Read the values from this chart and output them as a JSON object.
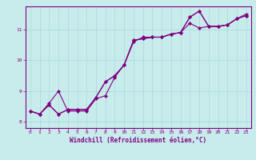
{
  "xlabel": "Windchill (Refroidissement éolien,°C)",
  "bg_color": "#c8ecec",
  "line_color": "#800080",
  "grid_color": "#a8d8d8",
  "axis_color": "#800080",
  "tick_color": "#800080",
  "xlim": [
    -0.5,
    23.5
  ],
  "ylim": [
    7.8,
    11.75
  ],
  "yticks": [
    8,
    9,
    10,
    11
  ],
  "xticks": [
    0,
    1,
    2,
    3,
    4,
    5,
    6,
    7,
    8,
    9,
    10,
    11,
    12,
    13,
    14,
    15,
    16,
    17,
    18,
    19,
    20,
    21,
    22,
    23
  ],
  "series": [
    [
      8.35,
      8.25,
      8.55,
      8.25,
      8.4,
      8.4,
      8.4,
      8.8,
      9.3,
      9.5,
      9.85,
      10.65,
      10.7,
      10.75,
      10.75,
      10.85,
      10.9,
      11.2,
      11.05,
      11.1,
      11.1,
      11.15,
      11.35,
      11.45
    ],
    [
      8.35,
      8.25,
      8.55,
      8.25,
      8.4,
      8.4,
      8.4,
      8.8,
      9.3,
      9.5,
      9.85,
      10.65,
      10.7,
      10.75,
      10.75,
      10.85,
      10.9,
      11.4,
      11.6,
      11.1,
      11.1,
      11.15,
      11.35,
      11.45
    ],
    [
      8.35,
      8.25,
      8.6,
      9.0,
      8.35,
      8.35,
      8.35,
      8.75,
      8.85,
      9.45,
      9.85,
      10.6,
      10.75,
      10.75,
      10.75,
      10.85,
      10.9,
      11.4,
      11.6,
      11.1,
      11.1,
      11.15,
      11.35,
      11.5
    ]
  ],
  "marker": "D",
  "markersize": 2.0,
  "linewidth": 0.8,
  "label_fontsize": 5.5,
  "tick_fontsize": 4.5
}
